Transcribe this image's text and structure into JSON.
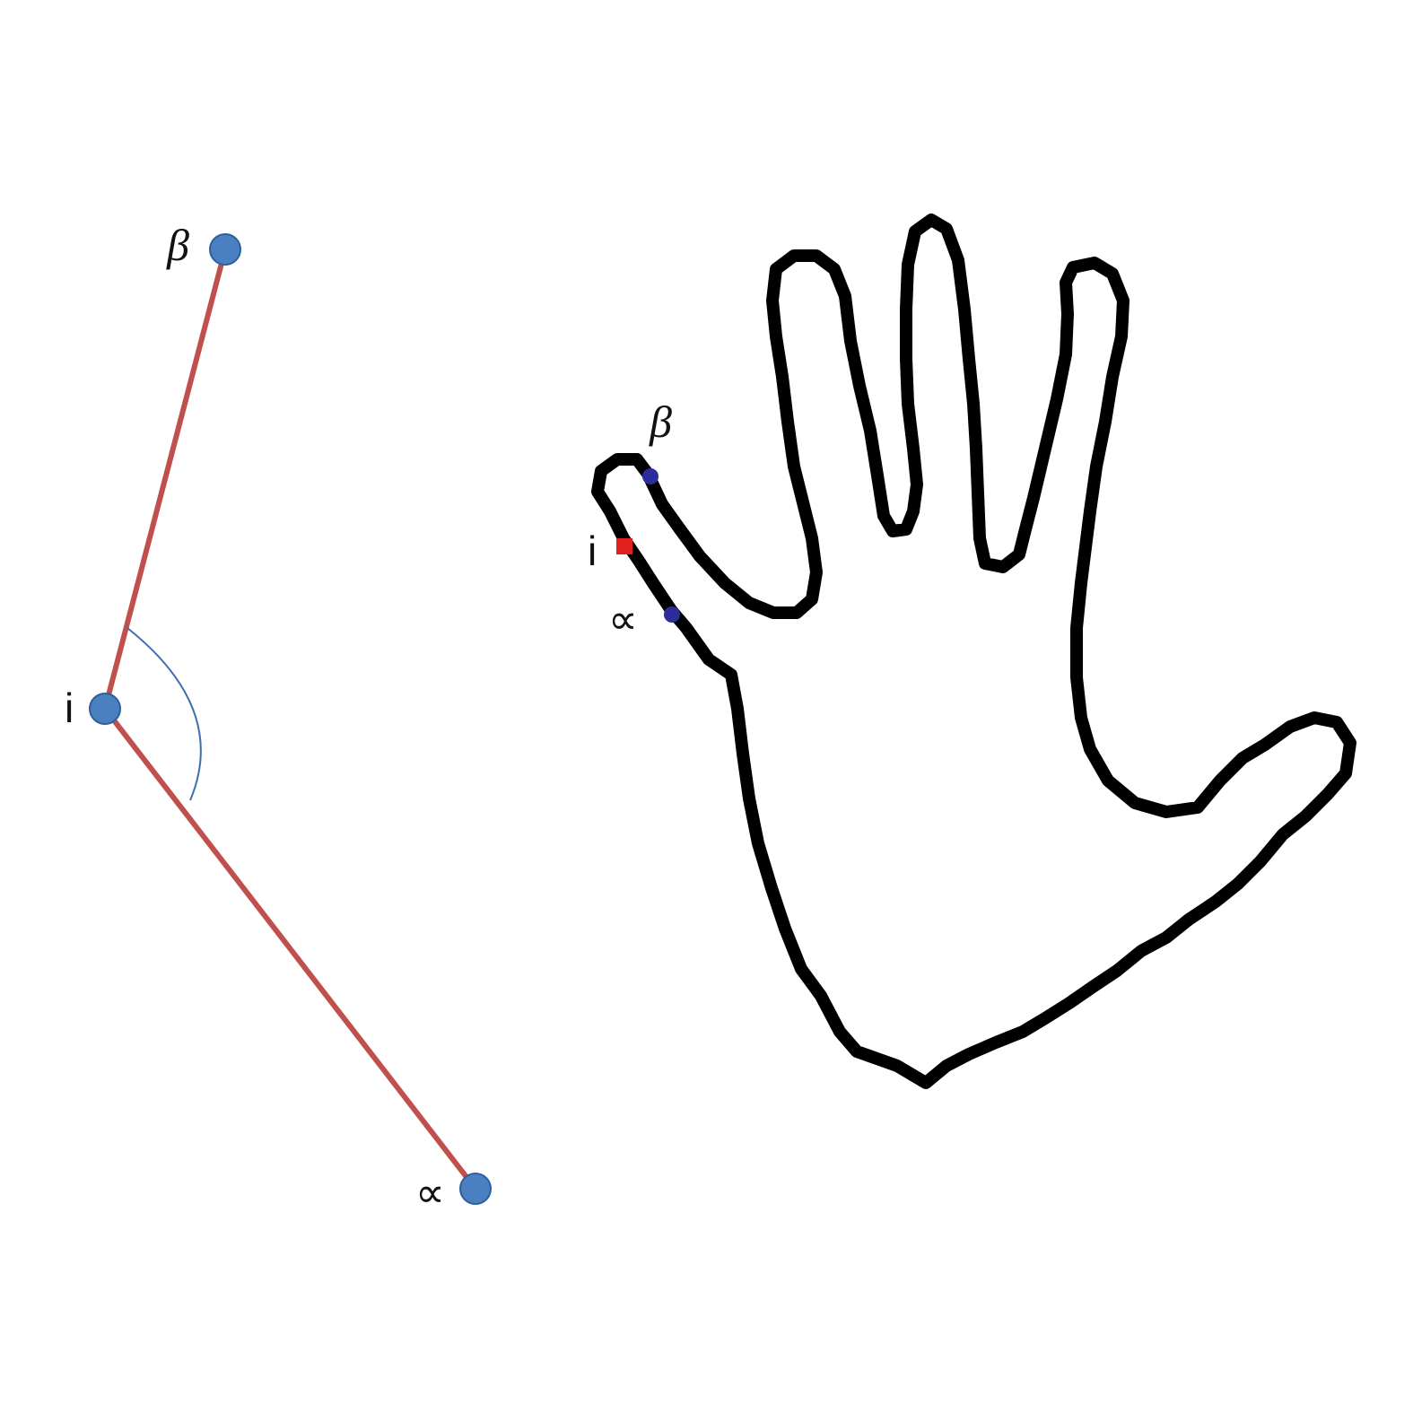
{
  "angle_diagram": {
    "beta_label": "β",
    "vertex_label": "i",
    "alpha_label": "∝",
    "segment_color": "#c0504d",
    "point_color": "#4a7fc1",
    "point_outline": "#2f5f99",
    "arc_color": "#3f6fb0"
  },
  "hand_contour": {
    "beta_label": "β",
    "vertex_label": "i",
    "alpha_label": "∝",
    "outline_color": "#000000",
    "neighbor_point_color": "#2b2e9a",
    "vertex_point_color": "#e0201c"
  }
}
